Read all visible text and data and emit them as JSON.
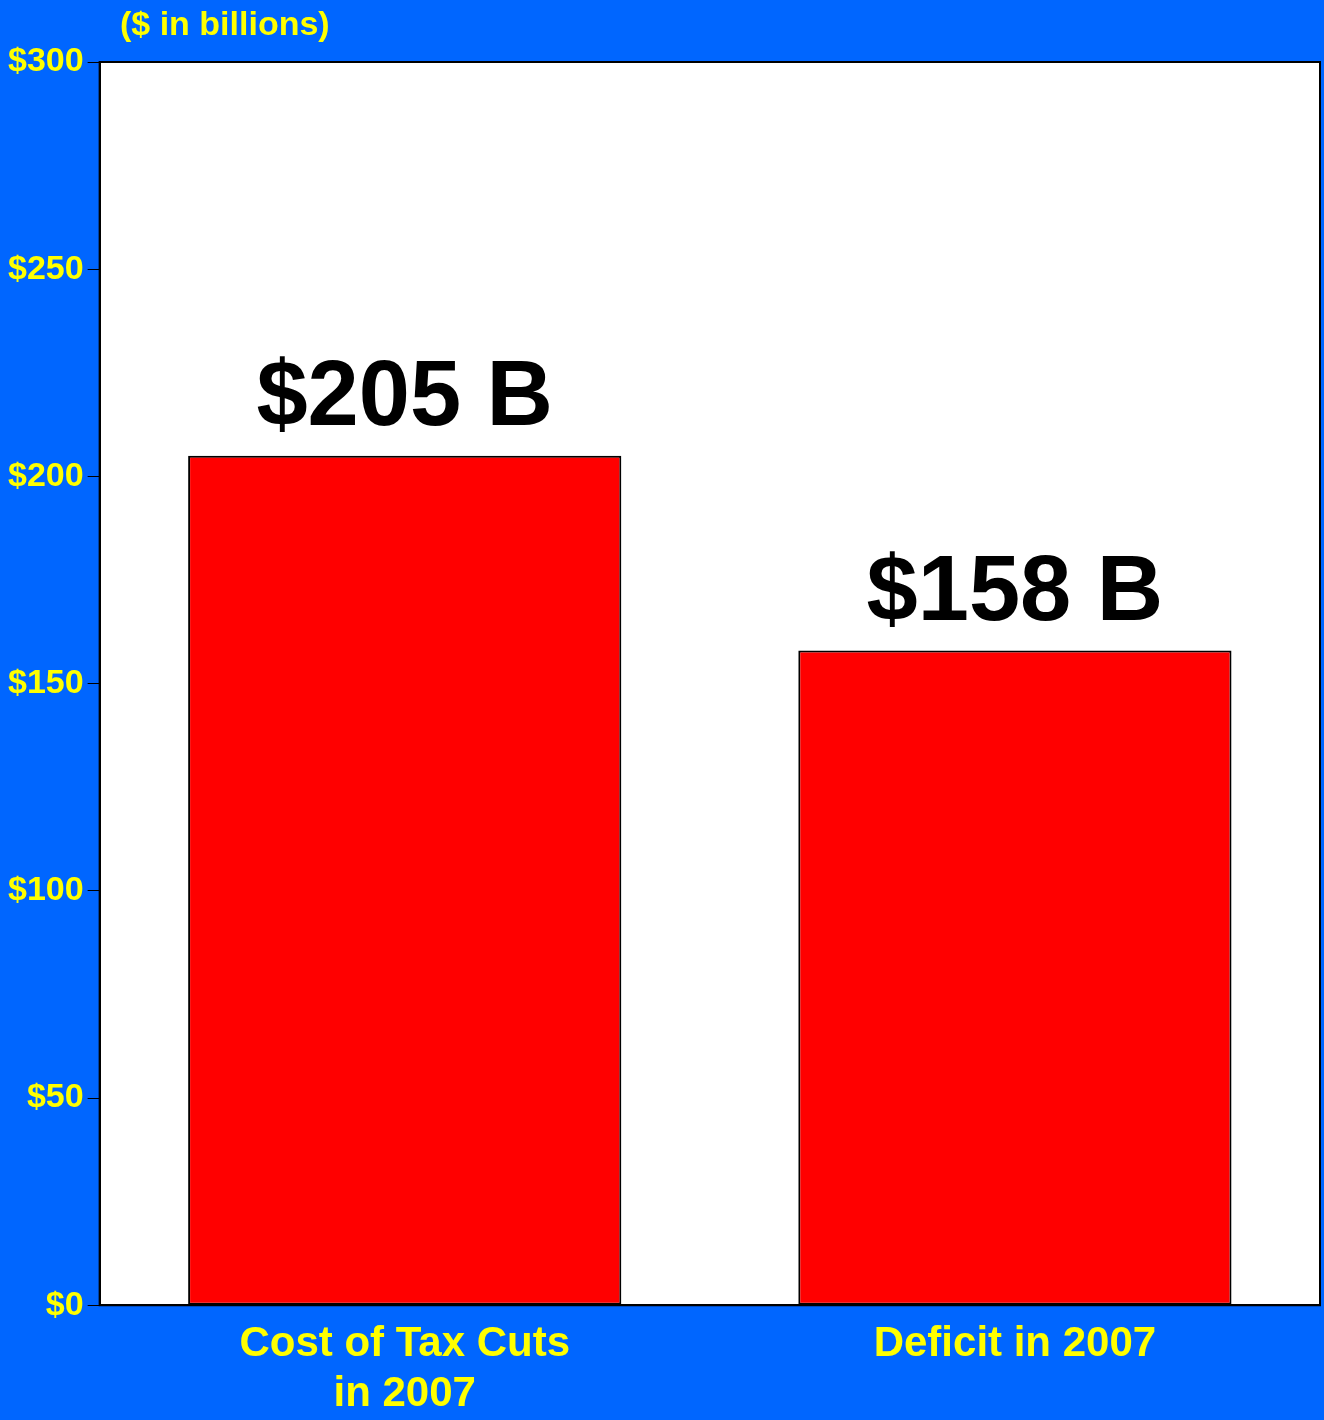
{
  "chart_data": {
    "type": "bar",
    "ylabel": "($ in billions)",
    "categories": [
      "Cost of Tax Cuts in 2007",
      "Deficit in 2007"
    ],
    "values": [
      205,
      158
    ],
    "value_labels": [
      "$205 B",
      "$158 B"
    ],
    "color": "#ff0000",
    "ylim": [
      0,
      300
    ],
    "yticks": [
      {
        "value": 0,
        "label": "$0"
      },
      {
        "value": 50,
        "label": "$50"
      },
      {
        "value": 100,
        "label": "$100"
      },
      {
        "value": 150,
        "label": "$150"
      },
      {
        "value": 200,
        "label": "$200"
      },
      {
        "value": 250,
        "label": "$250"
      },
      {
        "value": 300,
        "label": "$300"
      }
    ],
    "grid": false,
    "legend": false
  }
}
